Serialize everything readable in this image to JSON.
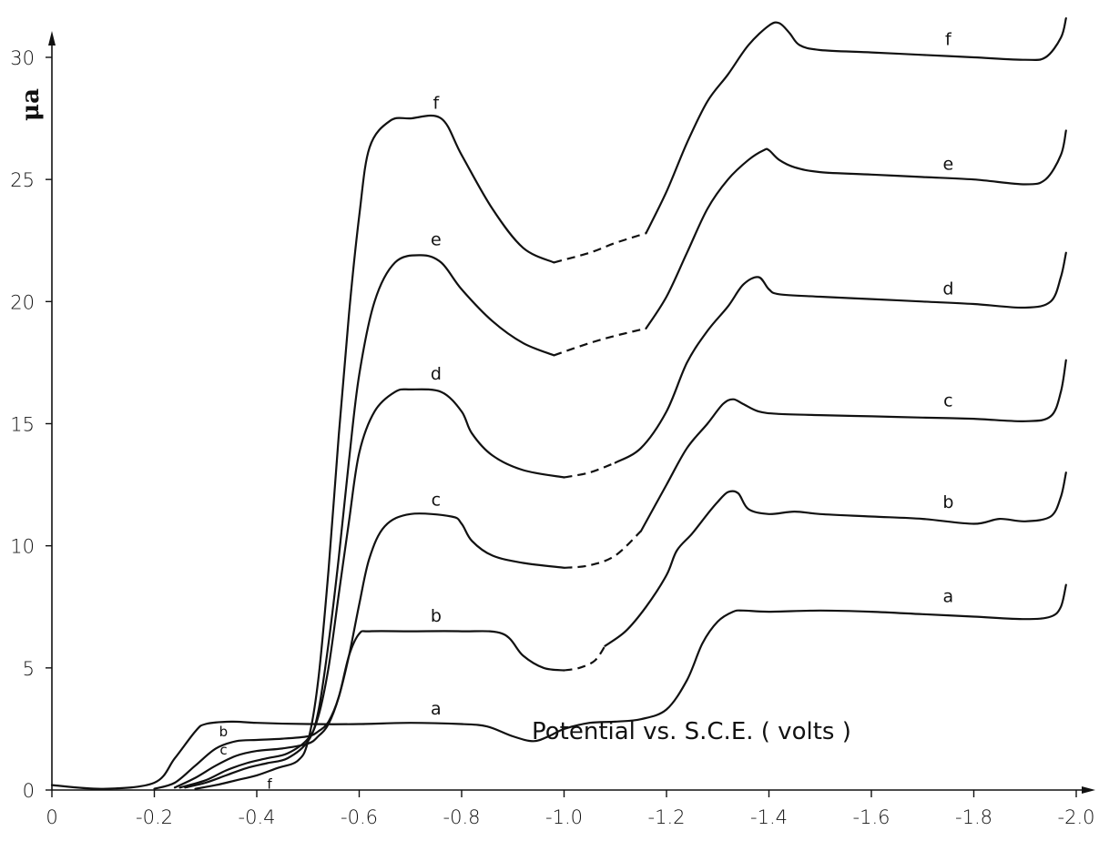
{
  "chart_data": {
    "type": "line",
    "title": "",
    "xlabel": "Potential vs. S.C.E. ( volts )",
    "ylabel": "μa",
    "xlim": [
      0,
      -2.0
    ],
    "ylim": [
      0,
      30
    ],
    "x_ticks": [
      "0",
      "-0.2",
      "-0.4",
      "-0.6",
      "-0.8",
      "-1.0",
      "-1.2",
      "-1.4",
      "-1.6",
      "-1.8",
      "-2.0"
    ],
    "y_ticks": [
      "0",
      "5",
      "10",
      "15",
      "20",
      "25",
      "30"
    ],
    "grid": false,
    "series": [
      {
        "name": "a",
        "x": [
          0,
          -0.1,
          -0.2,
          -0.24,
          -0.28,
          -0.3,
          -0.35,
          -0.4,
          -0.5,
          -0.6,
          -0.7,
          -0.8,
          -0.85,
          -0.9,
          -0.94,
          -0.97,
          -1.0,
          -1.05,
          -1.1,
          -1.15,
          -1.2,
          -1.24,
          -1.27,
          -1.3,
          -1.33,
          -1.35,
          -1.4,
          -1.5,
          -1.6,
          -1.7,
          -1.8,
          -1.9,
          -1.95,
          -1.97,
          -1.98
        ],
        "y": [
          0.2,
          0.05,
          0.3,
          1.3,
          2.4,
          2.7,
          2.8,
          2.75,
          2.7,
          2.7,
          2.75,
          2.7,
          2.6,
          2.2,
          2.0,
          2.2,
          2.5,
          2.75,
          2.8,
          2.9,
          3.3,
          4.5,
          6.0,
          6.9,
          7.3,
          7.35,
          7.3,
          7.35,
          7.3,
          7.2,
          7.1,
          7.0,
          7.1,
          7.5,
          8.4
        ]
      },
      {
        "name": "b",
        "x": [
          -0.2,
          -0.24,
          -0.28,
          -0.32,
          -0.36,
          -0.4,
          -0.45,
          -0.5,
          -0.52,
          -0.54,
          -0.56,
          -0.58,
          -0.6,
          -0.62,
          -0.7,
          -0.8,
          -0.88,
          -0.92,
          -0.96,
          -1.0
        ],
        "y": [
          0.05,
          0.3,
          1.0,
          1.7,
          2.0,
          2.05,
          2.1,
          2.2,
          2.4,
          2.8,
          3.8,
          5.5,
          6.4,
          6.5,
          6.5,
          6.5,
          6.4,
          5.5,
          5.0,
          4.9
        ],
        "dash_x": [
          -1.0,
          -1.03,
          -1.06,
          -1.08
        ],
        "dash_y": [
          4.9,
          5.0,
          5.3,
          5.9
        ],
        "x2": [
          -1.08,
          -1.12,
          -1.16,
          -1.2,
          -1.22,
          -1.25,
          -1.28,
          -1.3,
          -1.32,
          -1.34,
          -1.36,
          -1.4,
          -1.45,
          -1.5,
          -1.6,
          -1.7,
          -1.8,
          -1.85,
          -1.9,
          -1.95,
          -1.97,
          -1.98
        ],
        "y2": [
          5.9,
          6.5,
          7.5,
          8.8,
          9.8,
          10.5,
          11.3,
          11.8,
          12.2,
          12.15,
          11.5,
          11.3,
          11.4,
          11.3,
          11.2,
          11.1,
          10.9,
          11.1,
          11.0,
          11.2,
          12.0,
          13.0
        ]
      },
      {
        "name": "c",
        "x": [
          -0.24,
          -0.28,
          -0.32,
          -0.36,
          -0.4,
          -0.45,
          -0.5,
          -0.52,
          -0.54,
          -0.56,
          -0.58,
          -0.6,
          -0.62,
          -0.65,
          -0.7,
          -0.78,
          -0.8,
          -0.82,
          -0.86,
          -0.92,
          -1.0
        ],
        "y": [
          0.1,
          0.5,
          1.0,
          1.4,
          1.6,
          1.7,
          1.9,
          2.2,
          2.7,
          3.8,
          5.5,
          7.6,
          9.5,
          10.8,
          11.3,
          11.2,
          10.9,
          10.2,
          9.6,
          9.3,
          9.1
        ],
        "dash_x": [
          -1.0,
          -1.05,
          -1.1,
          -1.15
        ],
        "dash_y": [
          9.1,
          9.2,
          9.6,
          10.6
        ],
        "x2": [
          -1.15,
          -1.2,
          -1.24,
          -1.28,
          -1.31,
          -1.33,
          -1.35,
          -1.38,
          -1.42,
          -1.5,
          -1.6,
          -1.7,
          -1.8,
          -1.9,
          -1.95,
          -1.97,
          -1.98
        ],
        "y2": [
          10.6,
          12.5,
          14.0,
          15.0,
          15.8,
          16.0,
          15.8,
          15.5,
          15.4,
          15.35,
          15.3,
          15.25,
          15.2,
          15.1,
          15.3,
          16.3,
          17.6
        ]
      },
      {
        "name": "d",
        "x": [
          -0.25,
          -0.3,
          -0.34,
          -0.38,
          -0.42,
          -0.46,
          -0.5,
          -0.52,
          -0.54,
          -0.56,
          -0.58,
          -0.6,
          -0.63,
          -0.67,
          -0.7,
          -0.76,
          -0.8,
          -0.82,
          -0.86,
          -0.92,
          -1.0
        ],
        "y": [
          0.1,
          0.4,
          0.8,
          1.1,
          1.3,
          1.5,
          2.1,
          3.0,
          5.0,
          8.0,
          11.0,
          13.8,
          15.5,
          16.3,
          16.4,
          16.3,
          15.5,
          14.6,
          13.7,
          13.1,
          12.8
        ],
        "dash_x": [
          -1.0,
          -1.05,
          -1.1
        ],
        "dash_y": [
          12.8,
          13.0,
          13.4
        ],
        "x2": [
          -1.1,
          -1.15,
          -1.2,
          -1.24,
          -1.28,
          -1.32,
          -1.35,
          -1.38,
          -1.4,
          -1.42,
          -1.5,
          -1.6,
          -1.7,
          -1.8,
          -1.9,
          -1.95,
          -1.97,
          -1.98
        ],
        "y2": [
          13.4,
          14.0,
          15.5,
          17.5,
          18.8,
          19.8,
          20.7,
          21.0,
          20.5,
          20.3,
          20.2,
          20.1,
          20.0,
          19.9,
          19.75,
          20.0,
          21.0,
          22.0
        ]
      },
      {
        "name": "e",
        "x": [
          -0.26,
          -0.3,
          -0.34,
          -0.38,
          -0.42,
          -0.46,
          -0.5,
          -0.52,
          -0.54,
          -0.56,
          -0.58,
          -0.6,
          -0.63,
          -0.67,
          -0.72,
          -0.76,
          -0.8,
          -0.86,
          -0.92,
          -0.98
        ],
        "y": [
          0.1,
          0.3,
          0.6,
          0.9,
          1.1,
          1.3,
          2.0,
          3.2,
          6.0,
          9.5,
          13.5,
          17.0,
          20.0,
          21.6,
          21.9,
          21.6,
          20.5,
          19.2,
          18.3,
          17.8
        ],
        "dash_x": [
          -0.98,
          -1.05,
          -1.1,
          -1.16
        ],
        "dash_y": [
          17.8,
          18.3,
          18.6,
          18.9
        ],
        "x2": [
          -1.16,
          -1.2,
          -1.24,
          -1.28,
          -1.32,
          -1.36,
          -1.39,
          -1.4,
          -1.42,
          -1.45,
          -1.5,
          -1.6,
          -1.7,
          -1.8,
          -1.9,
          -1.94,
          -1.97,
          -1.98
        ],
        "y2": [
          18.9,
          20.2,
          22.0,
          23.8,
          25.0,
          25.8,
          26.2,
          26.2,
          25.8,
          25.5,
          25.3,
          25.2,
          25.1,
          25.0,
          24.8,
          25.0,
          26.0,
          27.0
        ]
      },
      {
        "name": "f",
        "x": [
          -0.28,
          -0.32,
          -0.36,
          -0.4,
          -0.44,
          -0.48,
          -0.5,
          -0.52,
          -0.54,
          -0.56,
          -0.58,
          -0.6,
          -0.62,
          -0.66,
          -0.7,
          -0.76,
          -0.8,
          -0.86,
          -0.92,
          -0.98
        ],
        "y": [
          0.05,
          0.2,
          0.4,
          0.6,
          0.9,
          1.2,
          2.0,
          4.5,
          9.0,
          14.5,
          19.5,
          23.5,
          26.3,
          27.4,
          27.5,
          27.5,
          26.0,
          23.8,
          22.2,
          21.6
        ],
        "dash_x": [
          -0.98,
          -1.05,
          -1.1,
          -1.16
        ],
        "dash_y": [
          21.6,
          22.0,
          22.4,
          22.8
        ],
        "x2": [
          -1.16,
          -1.2,
          -1.24,
          -1.28,
          -1.32,
          -1.36,
          -1.4,
          -1.42,
          -1.44,
          -1.46,
          -1.5,
          -1.6,
          -1.7,
          -1.8,
          -1.9,
          -1.94,
          -1.97,
          -1.98
        ],
        "y2": [
          22.8,
          24.5,
          26.5,
          28.2,
          29.3,
          30.5,
          31.3,
          31.4,
          31.0,
          30.5,
          30.3,
          30.2,
          30.1,
          30.0,
          29.9,
          30.0,
          30.8,
          31.6
        ]
      }
    ],
    "labels": [
      {
        "text": "a",
        "x": -0.75,
        "y": 3.1
      },
      {
        "text": "a",
        "x": -1.75,
        "y": 7.7
      },
      {
        "text": "b",
        "x": -0.75,
        "y": 6.9
      },
      {
        "text": "b",
        "x": -1.75,
        "y": 11.55
      },
      {
        "text": "c",
        "x": -0.75,
        "y": 11.65
      },
      {
        "text": "c",
        "x": -1.75,
        "y": 15.7
      },
      {
        "text": "d",
        "x": -0.75,
        "y": 16.8
      },
      {
        "text": "d",
        "x": -1.75,
        "y": 20.3
      },
      {
        "text": "e",
        "x": -0.75,
        "y": 22.3
      },
      {
        "text": "e",
        "x": -1.75,
        "y": 25.4
      },
      {
        "text": "f",
        "x": -0.75,
        "y": 27.9
      },
      {
        "text": "f",
        "x": -1.75,
        "y": 30.5
      }
    ],
    "small_labels": [
      {
        "text": "b",
        "x": -0.335,
        "y": 2.2
      },
      {
        "text": "c",
        "x": -0.335,
        "y": 1.45
      },
      {
        "text": "f",
        "x": -0.425,
        "y": 0.05
      }
    ]
  }
}
